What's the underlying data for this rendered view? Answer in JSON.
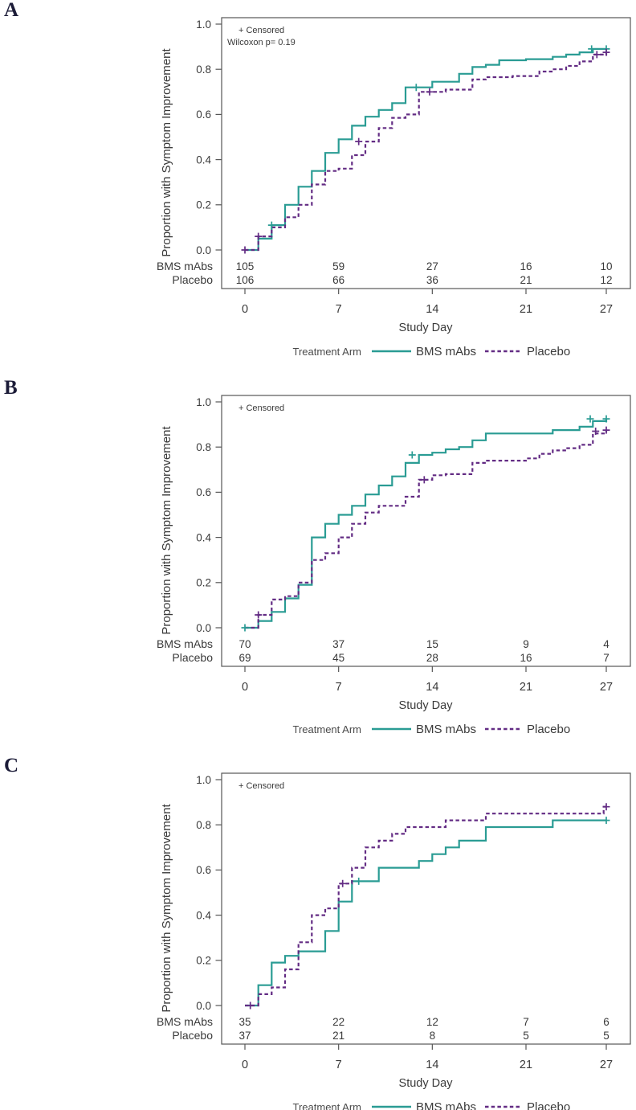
{
  "page": {
    "background": "#ffffff",
    "figure_type": "kaplan-meier-panels"
  },
  "chart_data": [
    {
      "panel_label": "A",
      "type": "line",
      "subtype": "kaplan-meier-step",
      "ylabel": "Proportion with Symptom Improvement",
      "xlabel": "Study Day",
      "annotations": [
        "+ Censored",
        "Wilcoxon p= 0.19"
      ],
      "xlim": [
        0,
        27
      ],
      "ylim": [
        0.0,
        1.0
      ],
      "x_ticks": [
        0,
        7,
        14,
        21,
        27
      ],
      "x_tick_labels": [
        "0",
        "7",
        "14",
        "21",
        "27"
      ],
      "y_ticks": [
        0.0,
        0.2,
        0.4,
        0.6,
        0.8,
        1.0
      ],
      "y_tick_labels": [
        "0.0",
        "0.2",
        "0.4",
        "0.6",
        "0.8",
        "1.0"
      ],
      "grid": false,
      "legend": {
        "title": "Treatment Arm",
        "position": "bottom"
      },
      "series": [
        {
          "name": "BMS mAbs",
          "color": "#2A9C94",
          "style": "solid",
          "points": [
            [
              0,
              0
            ],
            [
              1,
              0.05
            ],
            [
              2,
              0.11
            ],
            [
              3,
              0.2
            ],
            [
              4,
              0.28
            ],
            [
              5,
              0.35
            ],
            [
              6,
              0.43
            ],
            [
              7,
              0.49
            ],
            [
              8,
              0.55
            ],
            [
              9,
              0.59
            ],
            [
              10,
              0.62
            ],
            [
              11,
              0.65
            ],
            [
              12,
              0.72
            ],
            [
              14,
              0.745
            ],
            [
              16,
              0.78
            ],
            [
              17,
              0.81
            ],
            [
              18,
              0.82
            ],
            [
              19,
              0.84
            ],
            [
              21,
              0.845
            ],
            [
              23,
              0.855
            ],
            [
              24,
              0.865
            ],
            [
              25,
              0.875
            ],
            [
              26,
              0.89
            ],
            [
              27,
              0.89
            ]
          ],
          "censored": [
            [
              2,
              0.11
            ],
            [
              12.8,
              0.72
            ],
            [
              25.9,
              0.89
            ],
            [
              27,
              0.89
            ]
          ]
        },
        {
          "name": "Placebo",
          "color": "#632C84",
          "style": "dashed",
          "points": [
            [
              0,
              0
            ],
            [
              1,
              0.06
            ],
            [
              2,
              0.1
            ],
            [
              3,
              0.145
            ],
            [
              4,
              0.2
            ],
            [
              5,
              0.29
            ],
            [
              6,
              0.35
            ],
            [
              7,
              0.36
            ],
            [
              8,
              0.42
            ],
            [
              9,
              0.48
            ],
            [
              10,
              0.54
            ],
            [
              11,
              0.585
            ],
            [
              12,
              0.6
            ],
            [
              13,
              0.7
            ],
            [
              15,
              0.71
            ],
            [
              17,
              0.755
            ],
            [
              18,
              0.765
            ],
            [
              20,
              0.77
            ],
            [
              22,
              0.79
            ],
            [
              23,
              0.8
            ],
            [
              24,
              0.815
            ],
            [
              25,
              0.835
            ],
            [
              26,
              0.865
            ],
            [
              27,
              0.875
            ]
          ],
          "censored": [
            [
              0,
              0
            ],
            [
              1,
              0.06
            ],
            [
              8.5,
              0.48
            ],
            [
              13.8,
              0.7
            ],
            [
              26.3,
              0.865
            ],
            [
              27,
              0.875
            ]
          ]
        }
      ],
      "risk_table": {
        "rows": [
          {
            "label": "BMS mAbs",
            "color": "#2A9C94",
            "counts": [
              105,
              59,
              27,
              16,
              10
            ]
          },
          {
            "label": "Placebo",
            "color": "#632C84",
            "counts": [
              106,
              66,
              36,
              21,
              12
            ]
          }
        ]
      }
    },
    {
      "panel_label": "B",
      "type": "line",
      "subtype": "kaplan-meier-step",
      "ylabel": "Proportion with Symptom Improvement",
      "xlabel": "Study Day",
      "annotations": [
        "+ Censored"
      ],
      "xlim": [
        0,
        27
      ],
      "ylim": [
        0.0,
        1.0
      ],
      "x_ticks": [
        0,
        7,
        14,
        21,
        27
      ],
      "x_tick_labels": [
        "0",
        "7",
        "14",
        "21",
        "27"
      ],
      "y_ticks": [
        0.0,
        0.2,
        0.4,
        0.6,
        0.8,
        1.0
      ],
      "y_tick_labels": [
        "0.0",
        "0.2",
        "0.4",
        "0.6",
        "0.8",
        "1.0"
      ],
      "grid": false,
      "legend": {
        "title": "Treatment Arm",
        "position": "bottom"
      },
      "series": [
        {
          "name": "BMS mAbs",
          "color": "#2A9C94",
          "style": "solid",
          "points": [
            [
              0,
              0
            ],
            [
              1,
              0.03
            ],
            [
              2,
              0.07
            ],
            [
              3,
              0.13
            ],
            [
              4,
              0.19
            ],
            [
              5,
              0.4
            ],
            [
              6,
              0.46
            ],
            [
              7,
              0.5
            ],
            [
              8,
              0.54
            ],
            [
              9,
              0.59
            ],
            [
              10,
              0.63
            ],
            [
              11,
              0.67
            ],
            [
              12,
              0.73
            ],
            [
              13,
              0.765
            ],
            [
              14,
              0.775
            ],
            [
              15,
              0.79
            ],
            [
              16,
              0.8
            ],
            [
              17,
              0.83
            ],
            [
              18,
              0.86
            ],
            [
              23,
              0.875
            ],
            [
              25,
              0.89
            ],
            [
              26,
              0.915
            ],
            [
              27,
              0.925
            ]
          ],
          "censored": [
            [
              0,
              0
            ],
            [
              12.5,
              0.765
            ],
            [
              25.8,
              0.925
            ],
            [
              27,
              0.925
            ]
          ]
        },
        {
          "name": "Placebo",
          "color": "#632C84",
          "style": "dashed",
          "points": [
            [
              0,
              0
            ],
            [
              1,
              0.057
            ],
            [
              2,
              0.125
            ],
            [
              3,
              0.14
            ],
            [
              4,
              0.2
            ],
            [
              5,
              0.3
            ],
            [
              6,
              0.33
            ],
            [
              7,
              0.4
            ],
            [
              8,
              0.46
            ],
            [
              9,
              0.51
            ],
            [
              10,
              0.54
            ],
            [
              12,
              0.58
            ],
            [
              13,
              0.655
            ],
            [
              14,
              0.675
            ],
            [
              15,
              0.68
            ],
            [
              17,
              0.73
            ],
            [
              18,
              0.74
            ],
            [
              21,
              0.75
            ],
            [
              22,
              0.77
            ],
            [
              23,
              0.785
            ],
            [
              24,
              0.795
            ],
            [
              25,
              0.81
            ],
            [
              26,
              0.86
            ],
            [
              27,
              0.875
            ]
          ],
          "censored": [
            [
              1,
              0.057
            ],
            [
              13.4,
              0.655
            ],
            [
              26.2,
              0.87
            ],
            [
              27,
              0.875
            ]
          ]
        }
      ],
      "risk_table": {
        "rows": [
          {
            "label": "BMS mAbs",
            "color": "#2A9C94",
            "counts": [
              70,
              37,
              15,
              9,
              4
            ]
          },
          {
            "label": "Placebo",
            "color": "#632C84",
            "counts": [
              69,
              45,
              28,
              16,
              7
            ]
          }
        ]
      }
    },
    {
      "panel_label": "C",
      "type": "line",
      "subtype": "kaplan-meier-step",
      "ylabel": "Proportion with Symptom Improvement",
      "xlabel": "Study Day",
      "annotations": [
        "+ Censored"
      ],
      "xlim": [
        0,
        27
      ],
      "ylim": [
        0.0,
        1.0
      ],
      "x_ticks": [
        0,
        7,
        14,
        21,
        27
      ],
      "x_tick_labels": [
        "0",
        "7",
        "14",
        "21",
        "27"
      ],
      "y_ticks": [
        0.0,
        0.2,
        0.4,
        0.6,
        0.8,
        1.0
      ],
      "y_tick_labels": [
        "0.0",
        "0.2",
        "0.4",
        "0.6",
        "0.8",
        "1.0"
      ],
      "grid": false,
      "legend": {
        "title": "Treatment Arm",
        "position": "bottom"
      },
      "series": [
        {
          "name": "BMS mAbs",
          "color": "#2A9C94",
          "style": "solid",
          "points": [
            [
              0,
              0
            ],
            [
              1,
              0.09
            ],
            [
              2,
              0.19
            ],
            [
              3,
              0.22
            ],
            [
              4,
              0.24
            ],
            [
              6,
              0.33
            ],
            [
              7,
              0.46
            ],
            [
              8,
              0.55
            ],
            [
              10,
              0.61
            ],
            [
              13,
              0.64
            ],
            [
              14,
              0.67
            ],
            [
              15,
              0.7
            ],
            [
              16,
              0.73
            ],
            [
              18,
              0.79
            ],
            [
              23,
              0.82
            ],
            [
              27,
              0.82
            ]
          ],
          "censored": [
            [
              8.5,
              0.55
            ],
            [
              27,
              0.82
            ]
          ]
        },
        {
          "name": "Placebo",
          "color": "#632C84",
          "style": "dashed",
          "points": [
            [
              0,
              0
            ],
            [
              1,
              0.05
            ],
            [
              2,
              0.08
            ],
            [
              3,
              0.16
            ],
            [
              4,
              0.28
            ],
            [
              5,
              0.4
            ],
            [
              6,
              0.43
            ],
            [
              7,
              0.54
            ],
            [
              8,
              0.61
            ],
            [
              9,
              0.7
            ],
            [
              10,
              0.73
            ],
            [
              11,
              0.76
            ],
            [
              12,
              0.79
            ],
            [
              15,
              0.82
            ],
            [
              18,
              0.85
            ],
            [
              26.8,
              0.88
            ],
            [
              27,
              0.88
            ]
          ],
          "censored": [
            [
              0.4,
              0
            ],
            [
              7.3,
              0.54
            ],
            [
              27,
              0.88
            ]
          ]
        }
      ],
      "risk_table": {
        "rows": [
          {
            "label": "BMS mAbs",
            "color": "#2A9C94",
            "counts": [
              35,
              22,
              12,
              7,
              6
            ]
          },
          {
            "label": "Placebo",
            "color": "#632C84",
            "counts": [
              37,
              21,
              8,
              5,
              5
            ]
          }
        ]
      }
    }
  ]
}
